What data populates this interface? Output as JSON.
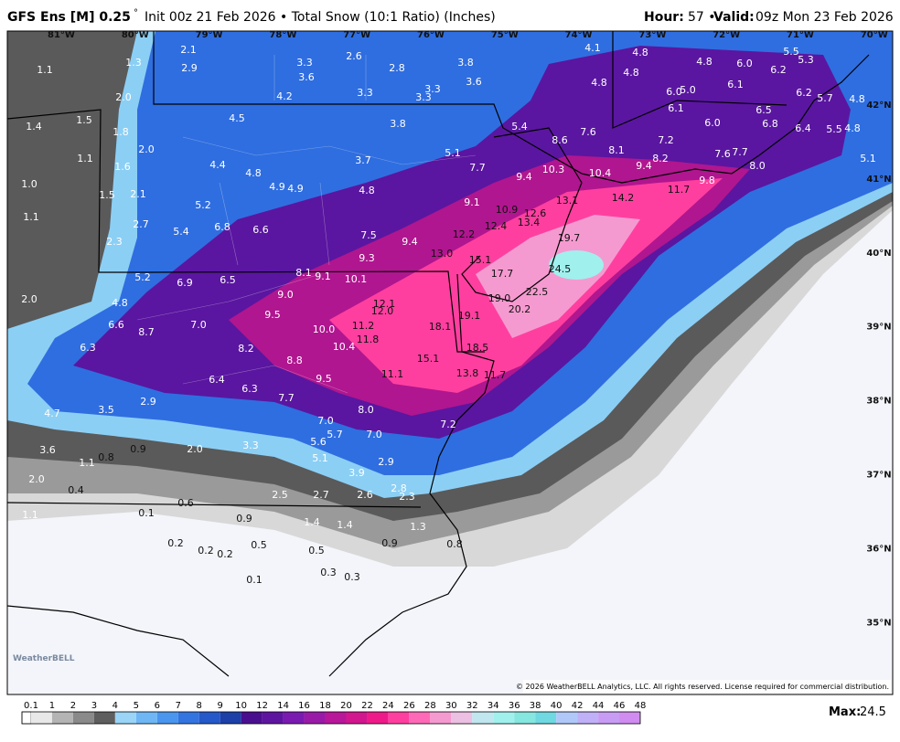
{
  "header": {
    "title": "GFS Ens [M] 0.25",
    "title_degree": "°",
    "subtitle": "Init 00z 21 Feb 2026 • Total Snow (10:1 Ratio) (Inches)",
    "hour_label": "Hour:",
    "hour": "57 •",
    "valid_label": "Valid:",
    "valid": "09z Mon 23 Feb 2026"
  },
  "map": {
    "lon_labels": [
      "81°W",
      "80°W",
      "79°W",
      "78°W",
      "77°W",
      "76°W",
      "75°W",
      "74°W",
      "73°W",
      "72°W",
      "71°W",
      "70°W"
    ],
    "lat_labels": [
      "42°N",
      "41°N",
      "40°N",
      "39°N",
      "38°N",
      "37°N",
      "36°N",
      "35°N"
    ],
    "snow_labels": [
      "2.1",
      "1.3",
      "2.9",
      "1.1",
      "3.3",
      "3.6",
      "2.6",
      "2.8",
      "3.8",
      "3.6",
      "3.3",
      "3.3",
      "3.3",
      "4.2",
      "4.1",
      "4.8",
      "4.8",
      "4.8",
      "6.0",
      "5.5",
      "5.3",
      "6.2",
      "4.8",
      "6.0",
      "5.0",
      "6.1",
      "6.2",
      "5.7",
      "4.8",
      "2.0",
      "1.5",
      "1.4",
      "1.8",
      "4.5",
      "3.8",
      "5.4",
      "6.1",
      "6.0",
      "6.5",
      "6.8",
      "6.4",
      "5.5",
      "4.8",
      "8.6",
      "7.6",
      "7.2",
      "2.0",
      "1.1",
      "1.6",
      "4.4",
      "3.7",
      "5.1",
      "8.1",
      "8.2",
      "9.4",
      "7.6",
      "7.7",
      "8.0",
      "5.1",
      "1.0",
      "4.8",
      "4.9",
      "4.9",
      "4.8",
      "7.7",
      "9.4",
      "10.3",
      "10.4",
      "9.8",
      "11.7",
      "1.5",
      "2.1",
      "1.1",
      "5.2",
      "9.1",
      "10.9",
      "12.6",
      "13.4",
      "13.1",
      "14.2",
      "2.7",
      "5.4",
      "6.8",
      "6.6",
      "7.5",
      "12.4",
      "12.2",
      "9.4",
      "19.7",
      "2.3",
      "13.0",
      "9.3",
      "15.1",
      "8.1",
      "9.1",
      "10.1",
      "17.7",
      "24.5",
      "5.2",
      "6.9",
      "6.5",
      "9.0",
      "12.1",
      "22.5",
      "19.0",
      "2.0",
      "4.8",
      "12.0",
      "9.5",
      "20.2",
      "19.1",
      "6.6",
      "7.0",
      "10.0",
      "11.2",
      "18.1",
      "8.7",
      "11.8",
      "6.3",
      "8.2",
      "10.4",
      "18.5",
      "8.8",
      "15.1",
      "9.5",
      "13.8",
      "11.7",
      "11.1",
      "6.4",
      "6.3",
      "7.7",
      "2.9",
      "3.5",
      "4.7",
      "8.0",
      "7.0",
      "7.2",
      "5.7",
      "7.0",
      "5.6",
      "3.3",
      "2.0",
      "0.9",
      "3.6",
      "0.8",
      "1.1",
      "5.1",
      "2.9",
      "3.9",
      "2.0",
      "0.4",
      "2.8",
      "2.5",
      "2.7",
      "2.6",
      "2.3",
      "0.6",
      "0.1",
      "1.1",
      "0.9",
      "1.4",
      "1.4",
      "1.3",
      "0.2",
      "0.2",
      "0.2",
      "0.5",
      "0.5",
      "0.9",
      "0.8",
      "0.3",
      "0.3",
      "0.1"
    ],
    "copyright": "© 2026 WeatherBELL Analytics, LLC. All rights reserved. License required for commercial distribution.",
    "logo": "WeatherBELL"
  },
  "colorbar": {
    "ticks": [
      0.1,
      1,
      2,
      3,
      4,
      5,
      6,
      7,
      8,
      9,
      10,
      12,
      14,
      16,
      18,
      20,
      22,
      24,
      26,
      28,
      30,
      32,
      34,
      36,
      38,
      40,
      42,
      44,
      46,
      48
    ],
    "colors": [
      "#e8e8e8",
      "#b4b4b4",
      "#8a8a8a",
      "#5e5e5e",
      "#9ad4f7",
      "#6fb6f5",
      "#4a95ee",
      "#3474e0",
      "#2558c8",
      "#1c3fa8",
      "#4a0f8e",
      "#5d15a0",
      "#7a1ab0",
      "#9a1aa8",
      "#b8179a",
      "#d2168d",
      "#ee1a8a",
      "#ff3fa0",
      "#ff6ab8",
      "#f59ad0",
      "#ecc0e2",
      "#c0e6f0",
      "#a0f0ee",
      "#86e6e0",
      "#6fd8e0",
      "#b0c8f8",
      "#c0b0f8",
      "#c89cf4",
      "#d08cf0"
    ],
    "max_label": "Max:",
    "max": 24.5
  }
}
